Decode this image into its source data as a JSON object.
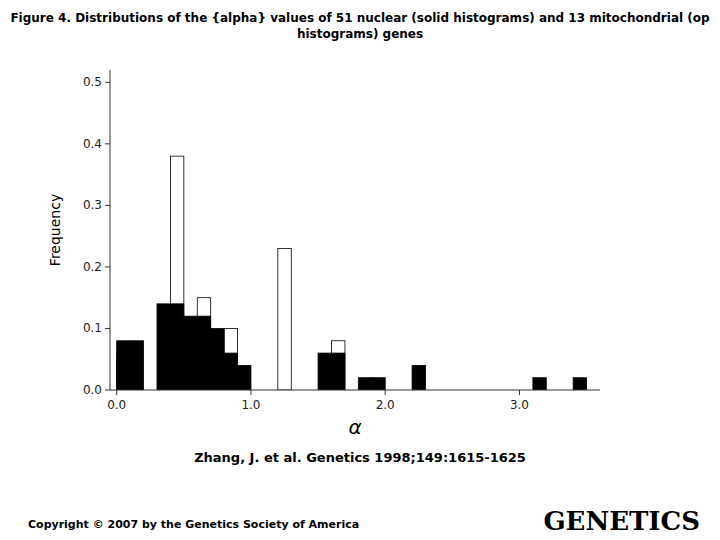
{
  "chart_data": {
    "type": "bar",
    "title": [
      "Figure 4. Distributions of the {alpha} values of 51 nuclear (solid histograms) and 13 mitochondrial (op",
      "histograms) genes"
    ],
    "annotations": [
      "Zhang, J. et al. Genetics 1998;149:1615-1625",
      "Copyright © 2007 by the Genetics Society of America",
      "GENETICS"
    ],
    "x_label": "α",
    "y_label": "Frequency",
    "xlim": [
      -0.05,
      3.6
    ],
    "ylim": [
      0.0,
      0.52
    ],
    "xticks": [
      {
        "value": 0.0,
        "label": "0.0"
      },
      {
        "value": 1.0,
        "label": "1.0"
      },
      {
        "value": 2.0,
        "label": "2.0"
      },
      {
        "value": 3.0,
        "label": "3.0"
      }
    ],
    "yticks": [
      {
        "value": 0.0,
        "label": "0.0"
      },
      0.1,
      0.2,
      0.3,
      0.4,
      0.5
    ],
    "grid": false,
    "series": [
      {
        "color": "white",
        "x": [
          0.05,
          0.45,
          0.65,
          0.85,
          1.25,
          1.65
        ],
        "values": [
          0.06,
          0.38,
          0.15,
          0.1,
          0.23,
          0.08
        ]
      },
      {
        "color": "black",
        "x": [
          0.05,
          0.15,
          0.35,
          0.45,
          0.55,
          0.65,
          0.75,
          0.85,
          0.95,
          1.55,
          1.65,
          1.85,
          1.95,
          2.25,
          3.15,
          3.45
        ],
        "values": [
          0.08,
          0.08,
          0.14,
          0.14,
          0.12,
          0.12,
          0.1,
          0.06,
          0.04,
          0.06,
          0.06,
          0.02,
          0.02,
          0.04,
          0.02,
          0.02
        ]
      }
    ]
  }
}
